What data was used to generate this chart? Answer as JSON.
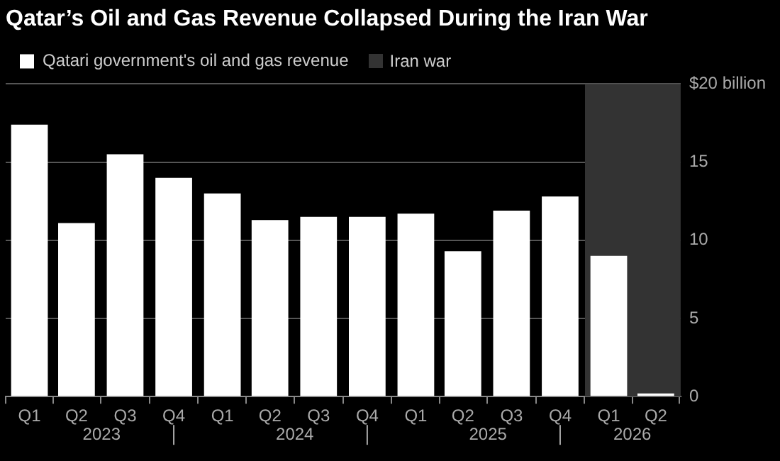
{
  "chart_data": {
    "type": "bar",
    "title": "Qatar’s Oil and Gas Revenue Collapsed During the Iran War",
    "x": [
      "2023-02-15",
      "2023-05-15",
      "2023-08-15",
      "2023-11-15",
      "2024-02-15",
      "2024-05-15",
      "2024-08-15",
      "2024-11-15",
      "2025-02-15",
      "2025-05-15",
      "2025-08-15",
      "2025-11-15",
      "2026-02-15",
      "2026-05-15"
    ],
    "xlim": [
      "2023-01-01",
      "2026-07-01"
    ],
    "xticks": [
      {
        "value": "2023-02-15",
        "label": "Q1"
      },
      {
        "value": "2023-05-15",
        "label": "Q2"
      },
      {
        "value": "2023-08-15",
        "label": "Q3"
      },
      {
        "value": "2023-11-15",
        "label": "Q4"
      },
      {
        "value": "2024-02-15",
        "label": "Q1"
      },
      {
        "value": "2024-05-15",
        "label": "Q2"
      },
      {
        "value": "2024-08-15",
        "label": "Q3"
      },
      {
        "value": "2024-11-15",
        "label": "Q4"
      },
      {
        "value": "2025-02-15",
        "label": "Q1"
      },
      {
        "value": "2025-05-15",
        "label": "Q2"
      },
      {
        "value": "2025-08-15",
        "label": "Q3"
      },
      {
        "value": "2025-11-15",
        "label": "Q4"
      },
      {
        "value": "2026-02-15",
        "label": "Q1"
      },
      {
        "value": "2026-05-15",
        "label": "Q2"
      }
    ],
    "series": [
      {
        "name": "Qatari government's oil and gas revenue",
        "color": "#ffffff",
        "values": [
          17.4,
          11.1,
          15.5,
          14.0,
          13.0,
          11.3,
          11.5,
          11.5,
          11.7,
          9.3,
          11.9,
          12.8,
          9.0,
          0.2
        ]
      }
    ],
    "ylim": [
      0,
      20
    ],
    "yticks": [
      0,
      5,
      10,
      15,
      {
        "value": 20,
        "label": "$20 billion"
      }
    ],
    "bands": [
      {
        "axis": "x",
        "from": "2026-01-01",
        "to": "2026-07-01",
        "label": "Iran war",
        "color": "#333333"
      }
    ],
    "annotations": [
      "2023",
      "2024",
      "2025",
      "2026"
    ],
    "grid": "y",
    "legend": "top left"
  }
}
